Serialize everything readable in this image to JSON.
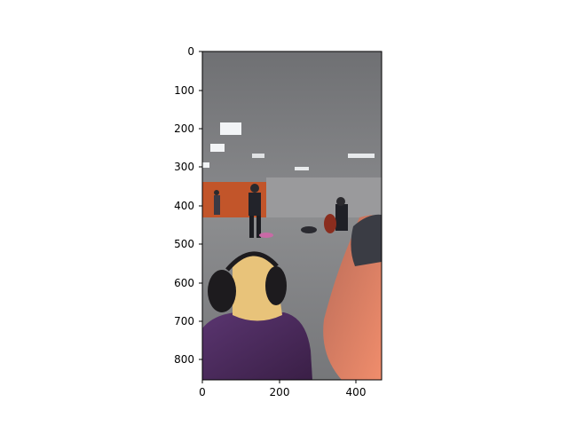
{
  "axes": {
    "x_ticks": [
      "0",
      "200",
      "400"
    ],
    "y_ticks": [
      "0",
      "100",
      "200",
      "300",
      "400",
      "500",
      "600",
      "700",
      "800"
    ]
  },
  "image": {
    "description_icon": "photo-icon",
    "colors": {
      "ceiling": "#8a8c8f",
      "wall_orange": "#c2552a",
      "floor": "#8e8f90",
      "coat": "#4b2a5a",
      "hair": "#e8c37a",
      "earmuff": "#1d1b1e",
      "skin_blur": "#e0876a"
    }
  }
}
